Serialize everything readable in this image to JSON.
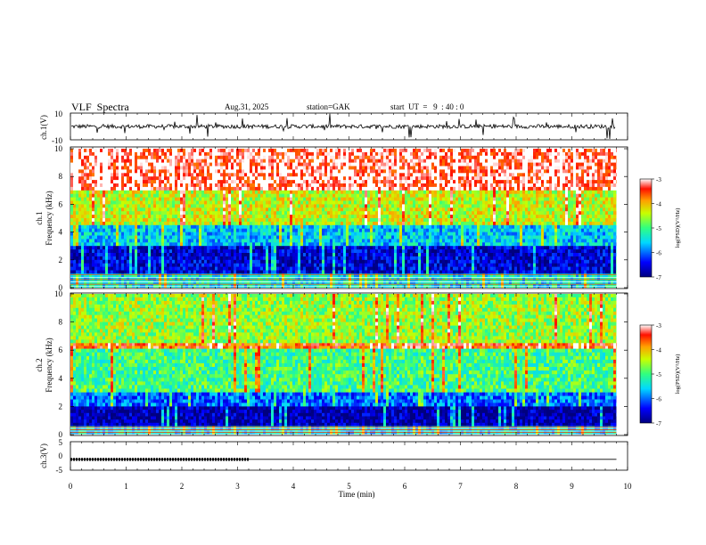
{
  "header": {
    "title": "VLF  Spectra",
    "date": "Aug.31, 2025",
    "station": "station=GAK",
    "start": "start  UT  =   9  : 40 : 0"
  },
  "chart_data": [
    {
      "type": "line",
      "name": "ch1-waveform",
      "ylabel": "ch.1(V)",
      "ylim": [
        -10,
        10
      ],
      "yticks": [
        "10",
        "-10"
      ],
      "baseline": 0,
      "description_series": "noise waveform with spikes",
      "xlim": [
        0,
        10
      ]
    },
    {
      "type": "heatmap",
      "name": "ch1-spectrogram",
      "ylabel": [
        "ch.1",
        "Frequency  (kHz)"
      ],
      "ylim": [
        0,
        10
      ],
      "yticks": [
        "0",
        "2",
        "4",
        "6",
        "8",
        "10"
      ],
      "xlim": [
        0,
        9.8
      ],
      "colorbar": {
        "label": "log(PSD)(V²/Hz)",
        "range": [
          -7,
          -3
        ],
        "ticks": [
          "-3",
          "-4",
          "-5",
          "-6",
          "-7"
        ]
      },
      "bands": [
        {
          "fmin": 7.0,
          "fmax": 10.0,
          "level": -3.2
        },
        {
          "fmin": 4.5,
          "fmax": 7.0,
          "level": -4.4
        },
        {
          "fmin": 3.0,
          "fmax": 4.5,
          "level": -5.6
        },
        {
          "fmin": 1.0,
          "fmax": 3.0,
          "level": -6.6
        },
        {
          "fmin": 0.0,
          "fmax": 1.0,
          "level": -5.4
        }
      ]
    },
    {
      "type": "heatmap",
      "name": "ch2-spectrogram",
      "ylabel": [
        "ch.2",
        "Frequency  (kHz)"
      ],
      "ylim": [
        0,
        10
      ],
      "yticks": [
        "0",
        "2",
        "4",
        "6",
        "8",
        "10"
      ],
      "xlim": [
        0,
        9.8
      ],
      "colorbar": {
        "label": "log(PSD)(V²/Hz)",
        "range": [
          -7,
          -3
        ],
        "ticks": [
          "-3",
          "-4",
          "-5",
          "-6",
          "-7"
        ]
      },
      "bands": [
        {
          "fmin": 6.5,
          "fmax": 10.0,
          "level": -4.6
        },
        {
          "fmin": 6.1,
          "fmax": 6.5,
          "level": -3.6
        },
        {
          "fmin": 3.0,
          "fmax": 6.1,
          "level": -5.0
        },
        {
          "fmin": 2.0,
          "fmax": 3.0,
          "level": -6.0
        },
        {
          "fmin": 0.6,
          "fmax": 2.0,
          "level": -6.8
        },
        {
          "fmin": 0.0,
          "fmax": 0.6,
          "level": -5.5
        }
      ]
    },
    {
      "type": "line",
      "name": "ch3-waveform",
      "ylabel": "ch.3(V)",
      "ylim": [
        -5,
        5
      ],
      "yticks": [
        "5",
        "0",
        "-5"
      ],
      "level": -1.2,
      "marker_end": 3.2,
      "xlabel": "Time  (min)",
      "xlim": [
        0,
        10
      ],
      "xticks": [
        "0",
        "1",
        "2",
        "3",
        "4",
        "5",
        "6",
        "7",
        "8",
        "9",
        "10"
      ]
    }
  ]
}
